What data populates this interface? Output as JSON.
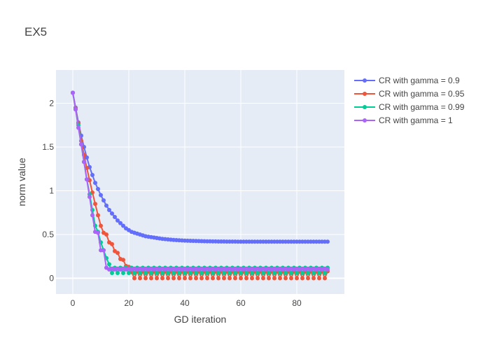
{
  "chart_data": {
    "type": "line",
    "title": "EX5",
    "xlabel": "GD iteration",
    "ylabel": "norm value",
    "xlim": [
      -6,
      97
    ],
    "ylim": [
      -0.18,
      2.38
    ],
    "xticks": [
      0,
      20,
      40,
      60,
      80
    ],
    "yticks": [
      0,
      0.5,
      1,
      1.5,
      2
    ],
    "ytick_labels": [
      "0",
      "0.5",
      "1",
      "1.5",
      "2"
    ],
    "grid": true,
    "legend_position": "top-right",
    "background": "#e5ecf6",
    "series": [
      {
        "name": "CR with gamma = 0.9",
        "color": "#636efa",
        "x": [
          0,
          1,
          2,
          3,
          4,
          5,
          6,
          7,
          8,
          9,
          10,
          11,
          12,
          13,
          14,
          15,
          16,
          17,
          18,
          19,
          20,
          21,
          22,
          23,
          24,
          25,
          26,
          27,
          28,
          29,
          30,
          31,
          32,
          33,
          34,
          35,
          36,
          37,
          38,
          39,
          40,
          41,
          42,
          43,
          44,
          45,
          46,
          47,
          48,
          49,
          50,
          51,
          52,
          53,
          54,
          55,
          56,
          57,
          58,
          59,
          60,
          61,
          62,
          63,
          64,
          65,
          66,
          67,
          68,
          69,
          70,
          71,
          72,
          73,
          74,
          75,
          76,
          77,
          78,
          79,
          80,
          81,
          82,
          83,
          84,
          85,
          86,
          87,
          88,
          89,
          90,
          91
        ],
        "y": [
          2.12,
          1.95,
          1.78,
          1.63,
          1.5,
          1.38,
          1.27,
          1.18,
          1.09,
          1.02,
          0.95,
          0.89,
          0.83,
          0.78,
          0.74,
          0.7,
          0.66,
          0.63,
          0.6,
          0.57,
          0.55,
          0.53,
          0.52,
          0.51,
          0.5,
          0.49,
          0.48,
          0.475,
          0.47,
          0.465,
          0.46,
          0.455,
          0.45,
          0.447,
          0.444,
          0.441,
          0.438,
          0.436,
          0.434,
          0.432,
          0.43,
          0.429,
          0.428,
          0.427,
          0.426,
          0.425,
          0.424,
          0.423,
          0.422,
          0.422,
          0.421,
          0.421,
          0.42,
          0.42,
          0.42,
          0.419,
          0.419,
          0.419,
          0.419,
          0.418,
          0.418,
          0.418,
          0.418,
          0.418,
          0.418,
          0.418,
          0.418,
          0.418,
          0.418,
          0.418,
          0.418,
          0.418,
          0.418,
          0.418,
          0.418,
          0.418,
          0.418,
          0.418,
          0.418,
          0.418,
          0.418,
          0.418,
          0.418,
          0.418,
          0.418,
          0.418,
          0.418,
          0.418,
          0.418,
          0.418,
          0.418,
          0.418
        ]
      },
      {
        "name": "CR with gamma = 0.95",
        "color": "#ef553b",
        "x": [
          0,
          1,
          2,
          3,
          4,
          5,
          6,
          7,
          8,
          9,
          10,
          11,
          12,
          13,
          14,
          15,
          16,
          17,
          18,
          19,
          20,
          21,
          22,
          23,
          24,
          25,
          26,
          27,
          28,
          29,
          30,
          31,
          32,
          33,
          34,
          35,
          36,
          37,
          38,
          39,
          40,
          41,
          42,
          43,
          44,
          45,
          46,
          47,
          48,
          49,
          50,
          51,
          52,
          53,
          54,
          55,
          56,
          57,
          58,
          59,
          60,
          61,
          62,
          63,
          64,
          65,
          66,
          67,
          68,
          69,
          70,
          71,
          72,
          73,
          74,
          75,
          76,
          77,
          78,
          79,
          80,
          81,
          82,
          83,
          84,
          85,
          86,
          87,
          88,
          89,
          90,
          91
        ],
        "y": [
          2.12,
          1.94,
          1.77,
          1.57,
          1.41,
          1.26,
          1.12,
          0.98,
          0.85,
          0.72,
          0.6,
          0.52,
          0.5,
          0.41,
          0.39,
          0.31,
          0.29,
          0.22,
          0.21,
          0.14,
          0.13,
          0.07,
          0.0,
          0.08,
          0.0,
          0.08,
          0.0,
          0.08,
          0.0,
          0.08,
          0.0,
          0.08,
          0.0,
          0.08,
          0.0,
          0.08,
          0.0,
          0.08,
          0.0,
          0.08,
          0.0,
          0.08,
          0.0,
          0.08,
          0.0,
          0.08,
          0.0,
          0.08,
          0.0,
          0.08,
          0.0,
          0.08,
          0.0,
          0.08,
          0.0,
          0.08,
          0.0,
          0.08,
          0.0,
          0.08,
          0.0,
          0.08,
          0.0,
          0.08,
          0.0,
          0.08,
          0.0,
          0.08,
          0.0,
          0.08,
          0.0,
          0.08,
          0.0,
          0.08,
          0.0,
          0.08,
          0.0,
          0.08,
          0.0,
          0.08,
          0.0,
          0.08,
          0.0,
          0.08,
          0.0,
          0.08,
          0.0,
          0.08,
          0.0,
          0.08,
          0.0,
          0.08
        ]
      },
      {
        "name": "CR with gamma = 0.99",
        "color": "#00cc96",
        "x": [
          0,
          1,
          2,
          3,
          4,
          5,
          6,
          7,
          8,
          9,
          10,
          11,
          12,
          13,
          14,
          15,
          16,
          17,
          18,
          19,
          20,
          21,
          22,
          23,
          24,
          25,
          26,
          27,
          28,
          29,
          30,
          31,
          32,
          33,
          34,
          35,
          36,
          37,
          38,
          39,
          40,
          41,
          42,
          43,
          44,
          45,
          46,
          47,
          48,
          49,
          50,
          51,
          52,
          53,
          54,
          55,
          56,
          57,
          58,
          59,
          60,
          61,
          62,
          63,
          64,
          65,
          66,
          67,
          68,
          69,
          70,
          71,
          72,
          73,
          74,
          75,
          76,
          77,
          78,
          79,
          80,
          81,
          82,
          83,
          84,
          85,
          86,
          87,
          88,
          89,
          90,
          91
        ],
        "y": [
          2.12,
          1.93,
          1.75,
          1.53,
          1.33,
          1.13,
          0.96,
          0.78,
          0.6,
          0.53,
          0.41,
          0.32,
          0.23,
          0.16,
          0.06,
          0.12,
          0.06,
          0.12,
          0.06,
          0.12,
          0.06,
          0.12,
          0.06,
          0.12,
          0.06,
          0.12,
          0.06,
          0.12,
          0.06,
          0.12,
          0.06,
          0.12,
          0.06,
          0.12,
          0.06,
          0.12,
          0.06,
          0.12,
          0.06,
          0.12,
          0.06,
          0.12,
          0.06,
          0.12,
          0.06,
          0.12,
          0.06,
          0.12,
          0.06,
          0.12,
          0.06,
          0.12,
          0.06,
          0.12,
          0.06,
          0.12,
          0.06,
          0.12,
          0.06,
          0.12,
          0.06,
          0.12,
          0.06,
          0.12,
          0.06,
          0.12,
          0.06,
          0.12,
          0.06,
          0.12,
          0.06,
          0.12,
          0.06,
          0.12,
          0.06,
          0.12,
          0.06,
          0.12,
          0.06,
          0.12,
          0.06,
          0.12,
          0.06,
          0.12,
          0.06,
          0.12,
          0.06,
          0.12,
          0.06,
          0.12,
          0.06,
          0.12
        ]
      },
      {
        "name": "CR with gamma = 1",
        "color": "#ab63fa",
        "x": [
          0,
          1,
          2,
          3,
          4,
          5,
          6,
          7,
          8,
          9,
          10,
          11,
          12,
          13,
          14,
          15,
          16,
          17,
          18,
          19,
          20,
          21,
          22,
          23,
          24,
          25,
          26,
          27,
          28,
          29,
          30,
          31,
          32,
          33,
          34,
          35,
          36,
          37,
          38,
          39,
          40,
          41,
          42,
          43,
          44,
          45,
          46,
          47,
          48,
          49,
          50,
          51,
          52,
          53,
          54,
          55,
          56,
          57,
          58,
          59,
          60,
          61,
          62,
          63,
          64,
          65,
          66,
          67,
          68,
          69,
          70,
          71,
          72,
          73,
          74,
          75,
          76,
          77,
          78,
          79,
          80,
          81,
          82,
          83,
          84,
          85,
          86,
          87,
          88,
          89,
          90,
          91
        ],
        "y": [
          2.12,
          1.93,
          1.72,
          1.53,
          1.33,
          1.13,
          0.93,
          0.72,
          0.53,
          0.52,
          0.32,
          0.32,
          0.12,
          0.1,
          0.11,
          0.1,
          0.11,
          0.1,
          0.11,
          0.1,
          0.11,
          0.1,
          0.11,
          0.1,
          0.11,
          0.1,
          0.11,
          0.1,
          0.11,
          0.1,
          0.11,
          0.1,
          0.11,
          0.1,
          0.11,
          0.1,
          0.11,
          0.1,
          0.11,
          0.1,
          0.11,
          0.1,
          0.11,
          0.1,
          0.11,
          0.1,
          0.11,
          0.1,
          0.11,
          0.1,
          0.11,
          0.1,
          0.11,
          0.1,
          0.11,
          0.1,
          0.11,
          0.1,
          0.11,
          0.1,
          0.11,
          0.1,
          0.11,
          0.1,
          0.11,
          0.1,
          0.11,
          0.1,
          0.11,
          0.1,
          0.11,
          0.1,
          0.11,
          0.1,
          0.11,
          0.1,
          0.11,
          0.1,
          0.11,
          0.1,
          0.11,
          0.1,
          0.11,
          0.1,
          0.11,
          0.1,
          0.11,
          0.1,
          0.11,
          0.1,
          0.11,
          0.1
        ]
      }
    ]
  }
}
